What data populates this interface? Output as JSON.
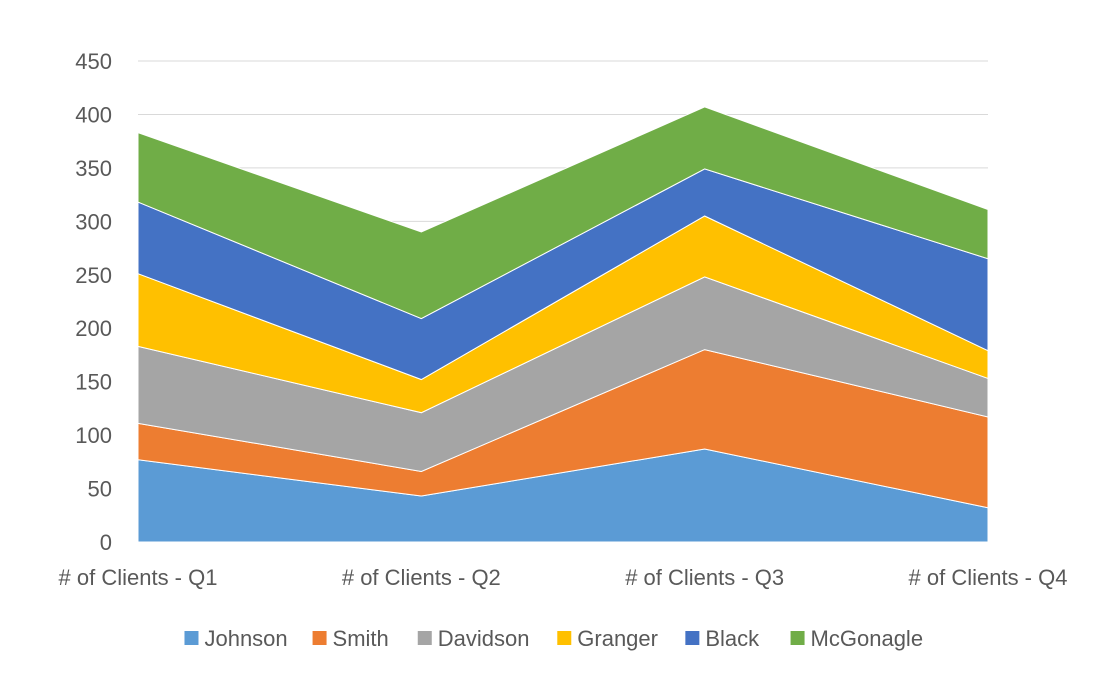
{
  "chart_data": {
    "type": "area",
    "stacked": true,
    "categories": [
      "# of Clients - Q1",
      "# of Clients - Q2",
      "# of Clients - Q3",
      "# of Clients - Q4"
    ],
    "series": [
      {
        "name": "Johnson",
        "color": "#5B9BD5",
        "values": [
          77,
          43,
          87,
          32
        ]
      },
      {
        "name": "Smith",
        "color": "#ED7D31",
        "values": [
          34,
          23,
          93,
          85
        ]
      },
      {
        "name": "Davidson",
        "color": "#A5A5A5",
        "values": [
          72,
          55,
          68,
          36
        ]
      },
      {
        "name": "Granger",
        "color": "#FFC000",
        "values": [
          68,
          31,
          57,
          26
        ]
      },
      {
        "name": "Black",
        "color": "#4472C4",
        "values": [
          67,
          57,
          44,
          86
        ]
      },
      {
        "name": "McGonagle",
        "color": "#70AD47",
        "values": [
          65,
          81,
          58,
          46
        ]
      }
    ],
    "ylim": [
      0,
      450
    ],
    "yticks": [
      0,
      50,
      100,
      150,
      200,
      250,
      300,
      350,
      400,
      450
    ],
    "grid": true,
    "legend_position": "bottom"
  }
}
